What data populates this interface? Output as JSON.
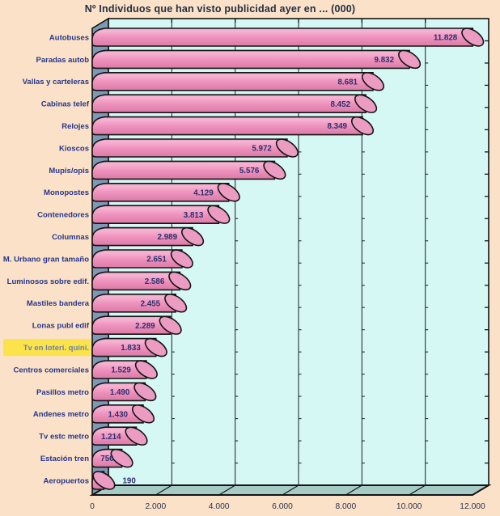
{
  "chart_data": {
    "type": "bar",
    "orientation": "horizontal",
    "style": "3d-cylinder",
    "title": "Nº Individuos que han visto publicidad ayer en ... (000)",
    "categories": [
      "Autobuses",
      "Paradas autob",
      "Vallas y carteleras",
      "Cabinas telef",
      "Relojes",
      "Kioscos",
      "Mupis/opis",
      "Monopostes",
      "Contenedores",
      "Columnas",
      "M. Urbano gran tamaño",
      "Luminosos sobre edif.",
      "Mastiles bandera",
      "Lonas publ edif",
      "Tv en loteri. quini.",
      "Centros comerciales",
      "Pasillos metro",
      "Andenes metro",
      "Tv estc metro",
      "Estación tren",
      "Aeropuertos"
    ],
    "values": [
      11828,
      9832,
      8681,
      8452,
      8349,
      5972,
      5576,
      4129,
      3813,
      2989,
      2651,
      2586,
      2455,
      2289,
      1833,
      1529,
      1490,
      1430,
      1214,
      756,
      190
    ],
    "value_labels": [
      "11.828",
      "9.832",
      "8.681",
      "8.452",
      "8.349",
      "5.972",
      "5.576",
      "4.129",
      "3.813",
      "2.989",
      "2.651",
      "2.586",
      "2.455",
      "2.289",
      "1.833",
      "1.529",
      "1.490",
      "1.430",
      "1.214",
      "756",
      "190"
    ],
    "highlight_index": 14,
    "highlighted_category": "Tv en loteri. quini.",
    "xlim": [
      0,
      12000
    ],
    "x_ticks": [
      "0",
      "2.000",
      "4.000",
      "6.000",
      "8.000",
      "10.000",
      "12.000"
    ],
    "grid": true,
    "legend": "none",
    "colors": {
      "background": "#FBE1C7",
      "plot_back_wall": "#D6F8F5",
      "side_wall": "#7D99B5",
      "floor": "#A6CBC7",
      "bar_top": "#F6B4D2",
      "bar_mid": "#EF93BE",
      "bar_bottom": "#DB7AA6",
      "bar_cap": "#EC9CC2",
      "outline": "#141414",
      "gridline": "#26303a",
      "category_label": "#26368b",
      "value_label": "#2b2f6e",
      "axis_label": "#2a3350",
      "title": "#232d43",
      "highlight_bg": "#FBE44B",
      "highlight_text": "#71809f"
    }
  }
}
